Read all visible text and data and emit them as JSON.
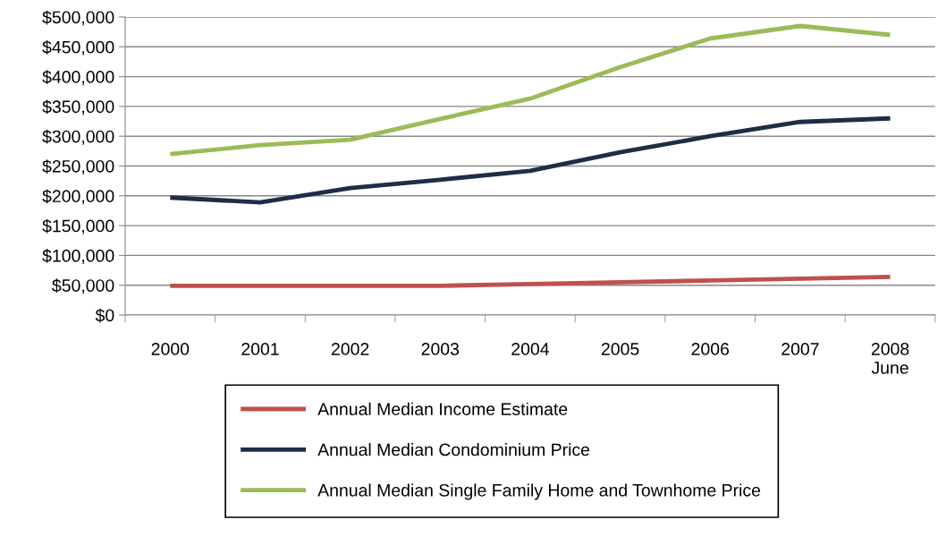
{
  "chart_data": {
    "type": "line",
    "categories": [
      "2000",
      "2001",
      "2002",
      "2003",
      "2004",
      "2005",
      "2006",
      "2007",
      "2008\nJune"
    ],
    "series": [
      {
        "name": "Annual Median Income Estimate",
        "color": "#c0504d",
        "values": [
          49000,
          49000,
          49000,
          49000,
          52000,
          55000,
          58000,
          61000,
          64000
        ]
      },
      {
        "name": "Annual Median Condominium Price",
        "color": "#1f2d45",
        "values": [
          197000,
          189000,
          213000,
          227000,
          242000,
          273000,
          300000,
          324000,
          330000
        ]
      },
      {
        "name": "Annual Median Single Family Home and Townhome Price",
        "color": "#9bbb59",
        "values": [
          270000,
          285000,
          294000,
          329000,
          363000,
          416000,
          464000,
          485000,
          470000
        ]
      }
    ],
    "ylim": [
      0,
      500000
    ],
    "yticks": [
      {
        "value": 0,
        "label": "$0"
      },
      {
        "value": 50000,
        "label": "$50,000"
      },
      {
        "value": 100000,
        "label": "$100,000"
      },
      {
        "value": 150000,
        "label": "$150,000"
      },
      {
        "value": 200000,
        "label": "$200,000"
      },
      {
        "value": 250000,
        "label": "$250,000"
      },
      {
        "value": 300000,
        "label": "$300,000"
      },
      {
        "value": 350000,
        "label": "$350,000"
      },
      {
        "value": 400000,
        "label": "$400,000"
      },
      {
        "value": 450000,
        "label": "$450,000"
      },
      {
        "value": 500000,
        "label": "$500,000"
      }
    ],
    "grid": "y",
    "legend": "bottom",
    "marker": "none",
    "line_style": "solid"
  }
}
